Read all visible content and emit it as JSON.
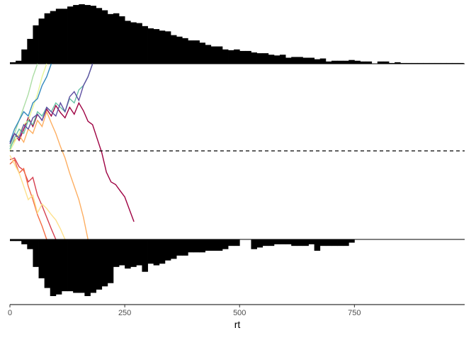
{
  "chart_data": {
    "type": "bar",
    "title": "",
    "xlabel": "rt",
    "ylabel": "",
    "xlim": [
      0,
      990
    ],
    "x_ticks": [
      0,
      250,
      500,
      750
    ],
    "x_tick_labels": [
      "0",
      "250",
      "500",
      "750"
    ],
    "grid": false,
    "legend": "none",
    "bin_width": 12.5,
    "upper_histogram": {
      "name": "",
      "bin_starts": [
        0,
        12.5,
        25,
        37.5,
        50,
        62.5,
        75,
        87.5,
        100,
        112.5,
        125,
        137.5,
        150,
        162.5,
        175,
        187.5,
        200,
        212.5,
        225,
        237.5,
        250,
        262.5,
        275,
        287.5,
        300,
        312.5,
        325,
        337.5,
        350,
        362.5,
        375,
        387.5,
        400,
        412.5,
        425,
        437.5,
        450,
        462.5,
        475,
        487.5,
        500,
        512.5,
        525,
        537.5,
        550,
        562.5,
        575,
        587.5,
        600,
        612.5,
        625,
        637.5,
        650,
        662.5,
        675,
        687.5,
        700,
        712.5,
        725,
        737.5,
        750,
        762.5,
        775,
        787.5,
        800,
        812.5,
        825,
        837.5,
        850,
        862.5,
        875,
        887.5,
        900,
        912.5,
        925,
        937.5,
        950,
        962.5,
        975
      ],
      "counts": [
        2,
        4,
        19,
        33,
        51,
        60,
        67,
        70,
        73,
        73,
        76,
        78,
        79,
        78,
        77,
        74,
        71,
        66,
        67,
        63,
        57,
        55,
        54,
        50,
        47,
        46,
        44,
        43,
        38,
        36,
        34,
        31,
        31,
        28,
        25,
        23,
        23,
        19,
        18,
        19,
        17,
        17,
        15,
        14,
        14,
        12,
        11,
        12,
        8,
        9,
        9,
        8,
        8,
        6,
        7,
        3,
        4,
        4,
        4,
        5,
        4,
        3,
        3,
        0,
        3,
        3,
        1,
        2,
        1,
        1,
        1,
        1,
        1,
        1,
        1,
        1,
        1,
        1,
        1
      ]
    },
    "lower_histogram": {
      "name": "",
      "bin_starts": [
        0,
        12.5,
        25,
        37.5,
        50,
        62.5,
        75,
        87.5,
        100,
        112.5,
        125,
        137.5,
        150,
        162.5,
        175,
        187.5,
        200,
        212.5,
        225,
        237.5,
        250,
        262.5,
        275,
        287.5,
        300,
        312.5,
        325,
        337.5,
        350,
        362.5,
        375,
        387.5,
        400,
        412.5,
        425,
        437.5,
        450,
        462.5,
        475,
        487.5,
        500,
        512.5,
        525,
        537.5,
        550,
        562.5,
        575,
        587.5,
        600,
        612.5,
        625,
        637.5,
        650,
        662.5,
        675,
        687.5,
        700,
        712.5,
        725,
        737.5,
        750,
        762.5,
        775,
        787.5,
        800,
        812.5,
        825,
        837.5,
        850,
        862.5,
        875,
        887.5,
        900,
        912.5,
        925,
        937.5,
        950,
        962.5,
        975
      ],
      "counts": [
        1,
        1,
        3,
        6,
        17,
        24,
        30,
        35,
        34,
        32,
        32,
        33,
        33,
        35,
        33,
        31,
        29,
        27,
        17,
        16,
        18,
        17,
        16,
        20,
        15,
        16,
        15,
        13,
        12,
        10,
        10,
        8,
        8,
        8,
        7,
        7,
        7,
        6,
        4,
        4,
        0,
        0,
        6,
        5,
        4,
        4,
        3,
        3,
        3,
        4,
        4,
        4,
        3,
        7,
        4,
        4,
        4,
        4,
        4,
        2,
        0,
        0,
        0,
        0,
        0,
        0,
        0,
        0,
        0,
        0,
        0,
        0,
        0,
        0,
        0,
        0,
        0,
        0,
        0
      ],
      "max_count": 35
    },
    "upper_max_count": 79,
    "middle_panel": {
      "type": "line",
      "ylim": [
        -1,
        1
      ],
      "threshold_upper": 1,
      "threshold_lower": -1,
      "reference_line": 0,
      "reference_style": "dashed",
      "series": [
        {
          "color": "#9e0142",
          "x": [
            0,
            10,
            20,
            30,
            40,
            50,
            60,
            70,
            80,
            90,
            100,
            110,
            120,
            130,
            140,
            150,
            160,
            170,
            180,
            190,
            200,
            210,
            220,
            230,
            240,
            250,
            260,
            270
          ],
          "y": [
            0.1,
            0.2,
            0.12,
            0.25,
            0.38,
            0.28,
            0.42,
            0.35,
            0.48,
            0.4,
            0.52,
            0.44,
            0.38,
            0.5,
            0.42,
            0.55,
            0.46,
            0.34,
            0.3,
            0.14,
            -0.02,
            -0.24,
            -0.35,
            -0.38,
            -0.45,
            -0.52,
            -0.66,
            -0.8
          ]
        },
        {
          "color": "#d53e4f",
          "x": [
            0,
            10,
            20,
            30,
            40,
            50,
            60,
            70,
            80,
            90,
            100
          ],
          "y": [
            -0.1,
            -0.08,
            -0.18,
            -0.22,
            -0.35,
            -0.3,
            -0.5,
            -0.62,
            -0.75,
            -0.88,
            -1.0
          ]
        },
        {
          "color": "#f46d43",
          "x": [
            0,
            10,
            20,
            30,
            40,
            50,
            60,
            70,
            80
          ],
          "y": [
            -0.15,
            -0.1,
            -0.25,
            -0.2,
            -0.4,
            -0.55,
            -0.72,
            -0.85,
            -1.0
          ]
        },
        {
          "color": "#fdae61",
          "x": [
            0,
            10,
            20,
            30,
            40,
            50,
            60,
            70,
            80,
            90,
            100,
            110,
            120,
            130,
            140,
            150,
            160,
            170
          ],
          "y": [
            0.05,
            0.12,
            0.18,
            0.1,
            0.25,
            0.2,
            0.35,
            0.28,
            0.45,
            0.32,
            0.2,
            0.05,
            -0.08,
            -0.25,
            -0.4,
            -0.55,
            -0.75,
            -1.0
          ]
        },
        {
          "color": "#fee08b",
          "x": [
            0,
            10,
            20,
            30,
            40,
            50,
            60,
            70,
            80,
            90,
            100,
            110,
            120
          ],
          "y": [
            -0.05,
            -0.15,
            -0.25,
            -0.4,
            -0.55,
            -0.5,
            -0.7,
            -0.6,
            -0.65,
            -0.72,
            -0.78,
            -0.88,
            -1.0
          ]
        },
        {
          "color": "#e6f598",
          "x": [
            0,
            10,
            20,
            30,
            40,
            50,
            60,
            70,
            80
          ],
          "y": [
            0.0,
            0.1,
            0.2,
            0.3,
            0.35,
            0.5,
            0.65,
            0.85,
            1.0
          ]
        },
        {
          "color": "#abdda4",
          "x": [
            0,
            10,
            20,
            30,
            40,
            50,
            60
          ],
          "y": [
            0.05,
            0.2,
            0.35,
            0.5,
            0.65,
            0.85,
            1.0
          ]
        },
        {
          "color": "#66c2a5",
          "x": [
            0,
            10,
            20,
            30,
            40,
            50,
            60,
            70,
            80,
            90,
            100,
            110,
            120,
            130,
            140,
            150,
            160,
            170,
            180
          ],
          "y": [
            0.02,
            0.15,
            0.25,
            0.2,
            0.35,
            0.3,
            0.45,
            0.4,
            0.5,
            0.45,
            0.55,
            0.5,
            0.45,
            0.6,
            0.55,
            0.7,
            0.75,
            0.85,
            1.0
          ]
        },
        {
          "color": "#3288bd",
          "x": [
            0,
            10,
            20,
            30,
            40,
            50,
            60,
            70,
            80,
            90
          ],
          "y": [
            0.1,
            0.25,
            0.35,
            0.45,
            0.4,
            0.55,
            0.6,
            0.75,
            0.85,
            1.0
          ]
        },
        {
          "color": "#5e4fa2",
          "x": [
            0,
            10,
            20,
            30,
            40,
            50,
            60,
            70,
            80,
            90,
            100,
            110,
            120,
            130,
            140,
            150,
            160,
            170,
            180
          ],
          "y": [
            0.08,
            0.2,
            0.15,
            0.3,
            0.25,
            0.38,
            0.42,
            0.35,
            0.5,
            0.45,
            0.4,
            0.55,
            0.45,
            0.62,
            0.68,
            0.58,
            0.75,
            0.85,
            1.0
          ]
        }
      ]
    }
  }
}
